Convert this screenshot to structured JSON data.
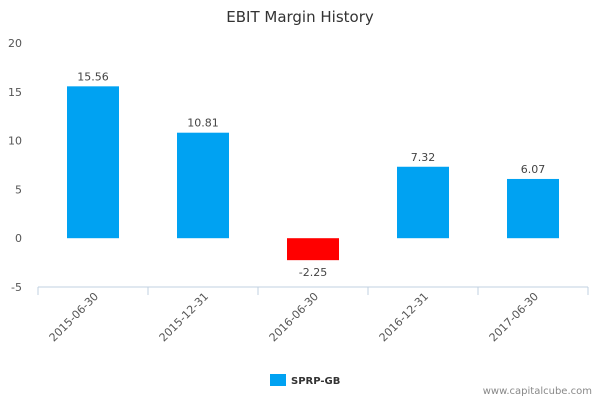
{
  "chart_data": {
    "type": "bar",
    "title": "EBIT Margin History",
    "categories": [
      "2015-06-30",
      "2015-12-31",
      "2016-06-30",
      "2016-12-31",
      "2017-06-30"
    ],
    "series": [
      {
        "name": "SPRP-GB",
        "values": [
          15.56,
          10.81,
          -2.25,
          7.32,
          6.07
        ]
      }
    ],
    "data_labels": [
      "15.56",
      "10.81",
      "-2.25",
      "7.32",
      "6.07"
    ],
    "y_ticks": [
      -5,
      0,
      5,
      10,
      15,
      20
    ],
    "ylim": [
      -5,
      20
    ],
    "xlabel": "",
    "ylabel": "",
    "grid": false,
    "legend_position": "bottom-center",
    "colors": {
      "positive": "#00a2f2",
      "negative": "#ff0000",
      "axis": "#c0d0e0"
    }
  },
  "credit": "www.capitalcube.com"
}
